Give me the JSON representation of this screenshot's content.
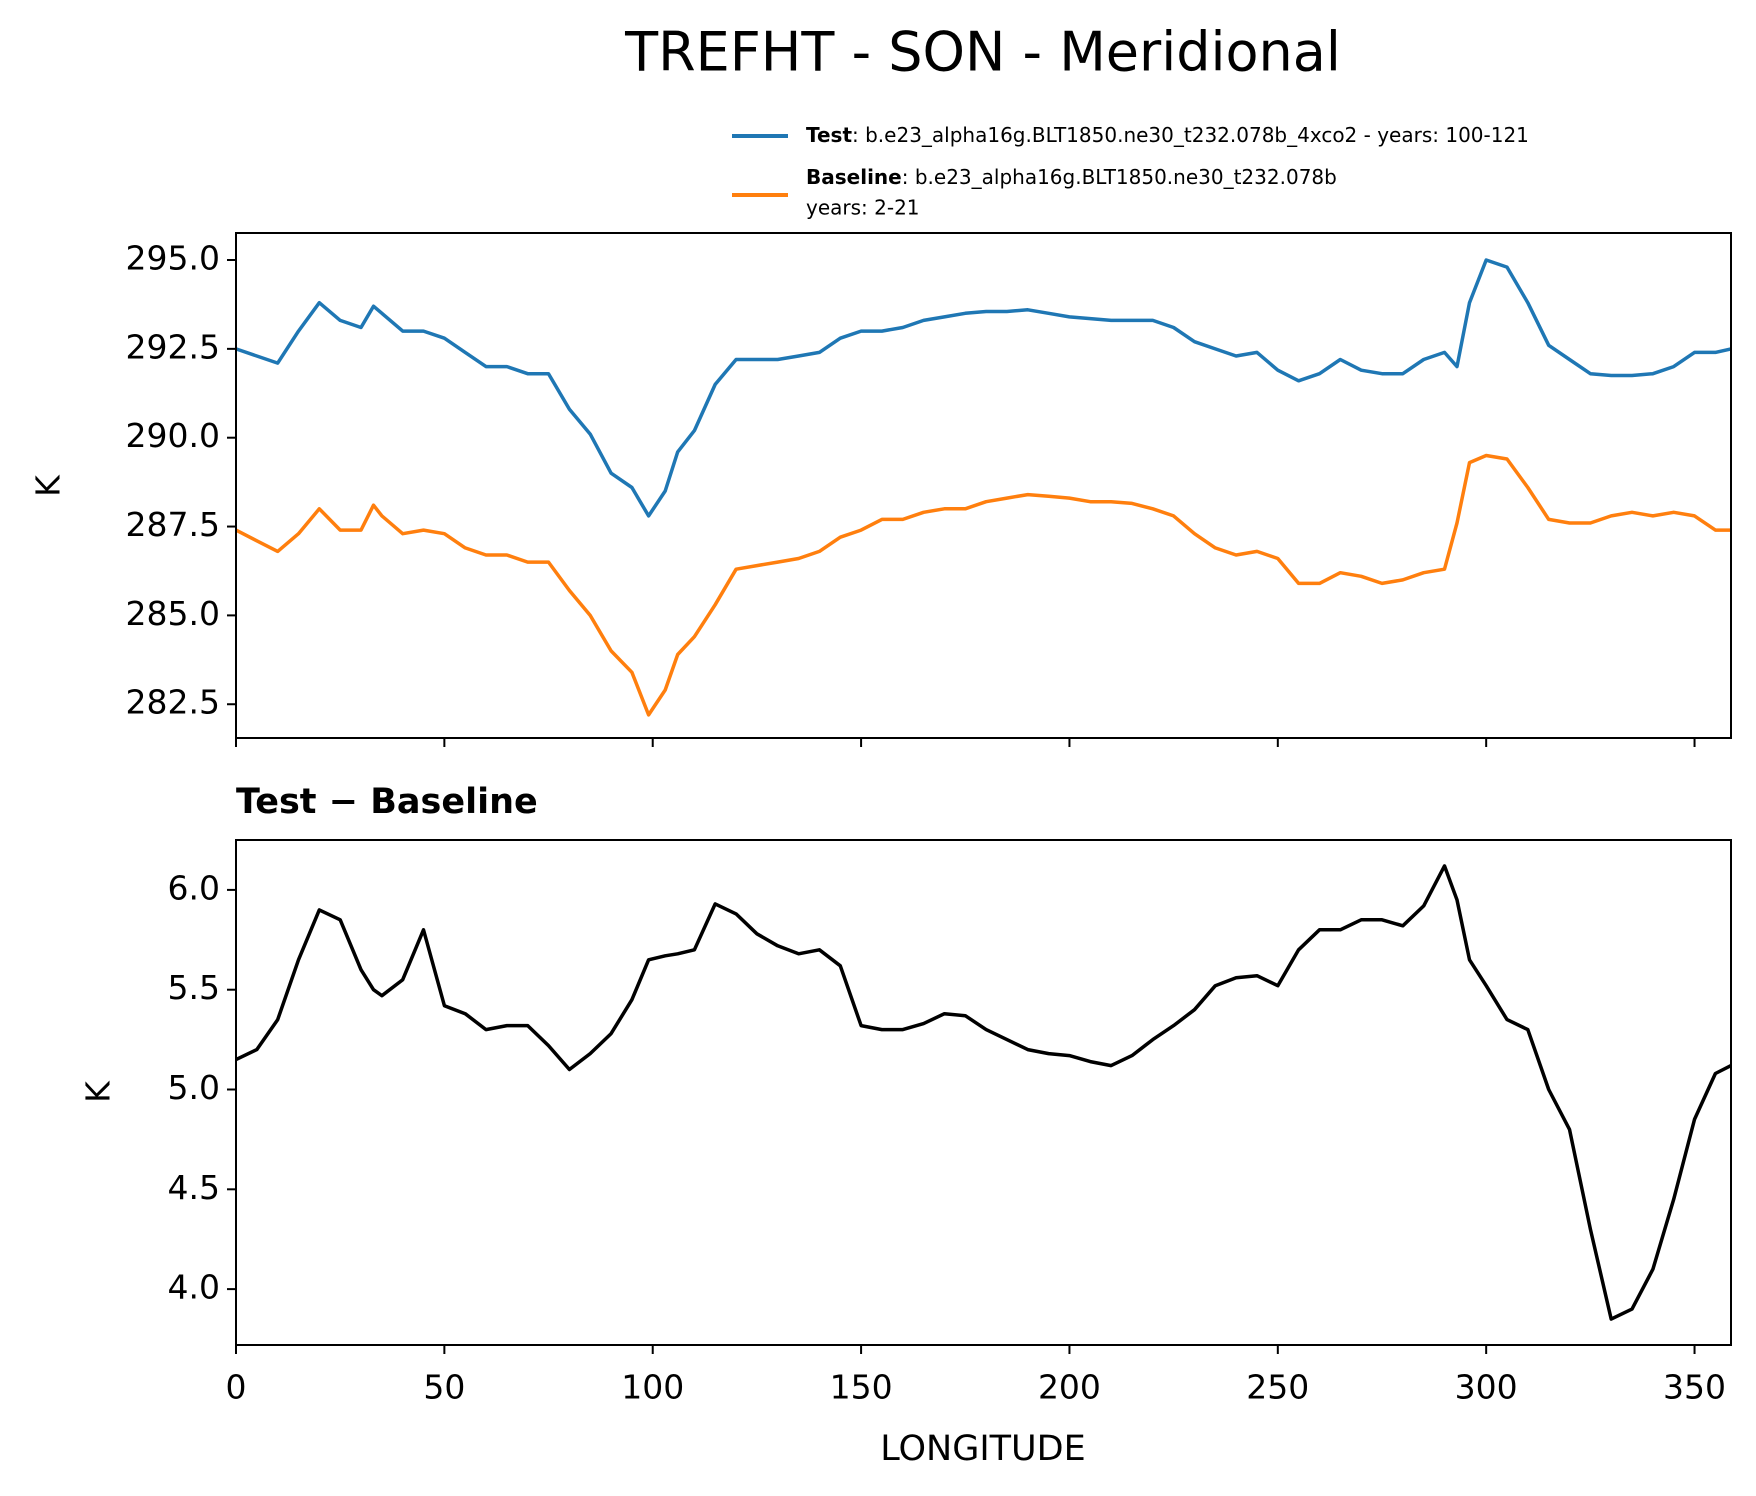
{
  "chart_data": [
    {
      "type": "line",
      "title": "TREFHT - SON - Meridional",
      "ylabel": "K",
      "x": [
        0,
        5,
        10,
        15,
        20,
        25,
        30,
        33,
        35,
        40,
        45,
        50,
        55,
        60,
        65,
        70,
        75,
        80,
        85,
        90,
        95,
        99,
        103,
        106,
        110,
        115,
        120,
        125,
        130,
        135,
        140,
        145,
        150,
        155,
        160,
        165,
        170,
        175,
        180,
        185,
        190,
        195,
        200,
        205,
        210,
        215,
        220,
        225,
        230,
        235,
        240,
        245,
        250,
        255,
        260,
        265,
        270,
        275,
        280,
        285,
        290,
        293,
        296,
        300,
        305,
        310,
        315,
        320,
        325,
        330,
        335,
        340,
        345,
        350,
        355,
        358.75
      ],
      "series": [
        {
          "name": "Test",
          "label": ": b.e23_alpha16g.BLT1850.ne30_t232.078b_4xco2 - years: 100-121",
          "color": "#1f77b4",
          "values": [
            292.5,
            292.3,
            292.1,
            293.0,
            293.8,
            293.3,
            293.1,
            293.7,
            293.5,
            293.0,
            293.0,
            292.8,
            292.4,
            292.0,
            292.0,
            291.8,
            291.8,
            290.8,
            290.1,
            289.0,
            288.6,
            287.8,
            288.5,
            289.6,
            290.2,
            291.5,
            292.2,
            292.2,
            292.2,
            292.3,
            292.4,
            292.8,
            293.0,
            293.0,
            293.1,
            293.3,
            293.4,
            293.5,
            293.55,
            293.55,
            293.6,
            293.5,
            293.4,
            293.35,
            293.3,
            293.3,
            293.3,
            293.1,
            292.7,
            292.5,
            292.3,
            292.4,
            291.9,
            291.6,
            291.8,
            292.2,
            291.9,
            291.8,
            291.8,
            292.2,
            292.4,
            292.0,
            293.8,
            295.0,
            294.8,
            293.8,
            292.6,
            292.2,
            291.8,
            291.75,
            291.75,
            291.8,
            292.0,
            292.4,
            292.4,
            292.5
          ]
        },
        {
          "name": "Baseline",
          "label": ": b.e23_alpha16g.BLT1850.ne30_t232.078b",
          "label_line2": "years: 2-21",
          "color": "#ff7f0e",
          "values": [
            287.4,
            287.1,
            286.8,
            287.3,
            288.0,
            287.4,
            287.4,
            288.1,
            287.8,
            287.3,
            287.4,
            287.3,
            286.9,
            286.7,
            286.7,
            286.5,
            286.5,
            285.7,
            285.0,
            284.0,
            283.4,
            282.2,
            282.9,
            283.9,
            284.4,
            285.3,
            286.3,
            286.4,
            286.5,
            286.6,
            286.8,
            287.2,
            287.4,
            287.7,
            287.7,
            287.9,
            288.0,
            288.0,
            288.2,
            288.3,
            288.4,
            288.35,
            288.3,
            288.2,
            288.2,
            288.15,
            288.0,
            287.8,
            287.3,
            286.9,
            286.7,
            286.8,
            286.6,
            285.9,
            285.9,
            286.2,
            286.1,
            285.9,
            286.0,
            286.2,
            286.3,
            287.6,
            289.3,
            289.5,
            289.4,
            288.6,
            287.7,
            287.6,
            287.6,
            287.8,
            287.9,
            287.8,
            287.9,
            287.8,
            287.4,
            287.4
          ]
        }
      ],
      "xlim": [
        0,
        358.75
      ],
      "xticks": [
        0,
        50,
        100,
        150,
        200,
        250,
        300,
        350
      ],
      "show_xticklabels": false,
      "ylim": [
        281.55,
        295.76
      ],
      "yticks": [
        282.5,
        {
          "value": 285,
          "label": "285.0"
        },
        287.5,
        {
          "value": 290,
          "label": "290.0"
        },
        292.5,
        {
          "value": 295,
          "label": "295.0"
        }
      ],
      "grid": false
    },
    {
      "type": "line",
      "title": "Test − Baseline",
      "xlabel": "LONGITUDE",
      "ylabel": "K",
      "x": [
        0,
        5,
        10,
        15,
        20,
        25,
        30,
        33,
        35,
        40,
        45,
        50,
        55,
        60,
        65,
        70,
        75,
        80,
        85,
        90,
        95,
        99,
        103,
        106,
        110,
        115,
        120,
        125,
        130,
        135,
        140,
        145,
        150,
        155,
        160,
        165,
        170,
        175,
        180,
        185,
        190,
        195,
        200,
        205,
        210,
        215,
        220,
        225,
        230,
        235,
        240,
        245,
        250,
        255,
        260,
        265,
        270,
        275,
        280,
        285,
        290,
        293,
        296,
        300,
        305,
        310,
        315,
        320,
        325,
        330,
        335,
        340,
        345,
        350,
        355,
        358.75
      ],
      "series": [
        {
          "color": "#000000",
          "values": [
            5.15,
            5.2,
            5.35,
            5.65,
            5.9,
            5.85,
            5.6,
            5.5,
            5.47,
            5.55,
            5.8,
            5.42,
            5.38,
            5.3,
            5.32,
            5.32,
            5.22,
            5.1,
            5.18,
            5.28,
            5.45,
            5.65,
            5.67,
            5.68,
            5.7,
            5.93,
            5.88,
            5.78,
            5.72,
            5.68,
            5.7,
            5.62,
            5.32,
            5.3,
            5.3,
            5.33,
            5.38,
            5.37,
            5.3,
            5.25,
            5.2,
            5.18,
            5.17,
            5.14,
            5.12,
            5.17,
            5.25,
            5.32,
            5.4,
            5.52,
            5.56,
            5.57,
            5.52,
            5.7,
            5.8,
            5.8,
            5.85,
            5.85,
            5.82,
            5.92,
            6.12,
            5.95,
            5.65,
            5.52,
            5.35,
            5.3,
            5.0,
            4.8,
            4.3,
            3.85,
            3.9,
            4.1,
            4.45,
            4.85,
            5.08,
            5.12
          ]
        }
      ],
      "xlim": [
        0,
        358.75
      ],
      "xticks": [
        0,
        50,
        100,
        150,
        200,
        250,
        300,
        350
      ],
      "show_xticklabels": true,
      "ylim": [
        3.72,
        6.25
      ],
      "yticks": [
        {
          "value": 4,
          "label": "4.0"
        },
        4.5,
        {
          "value": 5,
          "label": "5.0"
        },
        5.5,
        {
          "value": 6,
          "label": "6.0"
        }
      ],
      "grid": false
    }
  ]
}
